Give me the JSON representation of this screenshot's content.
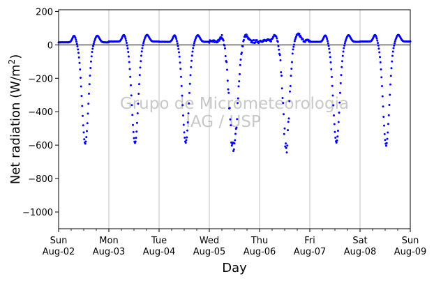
{
  "chart_data": {
    "type": "scatter",
    "xlabel": "Day",
    "ylabel": "Net radiation (W/m",
    "ylabel_sup": "2",
    "ylabel_close": ")",
    "ylim": [
      -1100,
      210
    ],
    "yticks": [
      200,
      0,
      -200,
      -400,
      -600,
      -800,
      -1000
    ],
    "ytick_labels": [
      "200",
      "0",
      "−200",
      "−400",
      "−600",
      "−800",
      "−1000"
    ],
    "xlim_days": [
      0,
      7
    ],
    "xticks": [
      {
        "day": 0,
        "weekday": "Sun",
        "date": "Aug-02"
      },
      {
        "day": 1,
        "weekday": "Mon",
        "date": "Aug-03"
      },
      {
        "day": 2,
        "weekday": "Tue",
        "date": "Aug-04"
      },
      {
        "day": 3,
        "weekday": "Wed",
        "date": "Aug-05"
      },
      {
        "day": 4,
        "weekday": "Thu",
        "date": "Aug-06"
      },
      {
        "day": 5,
        "weekday": "Fri",
        "date": "Aug-07"
      },
      {
        "day": 6,
        "weekday": "Sat",
        "date": "Aug-08"
      },
      {
        "day": 7,
        "weekday": "Sun",
        "date": "Aug-09"
      }
    ],
    "grid": "vertical",
    "zero_line": true,
    "watermark": [
      "Grupo de Micrometeorologia",
      "IAG / USP"
    ],
    "series": [
      {
        "color": "#0000ff",
        "sample_step_hours": 0.25,
        "days": [
          {
            "day": 0,
            "night": 15,
            "midday_min": -590,
            "peak_day_frac": 0.53,
            "width": 0.09,
            "noise": 6
          },
          {
            "day": 1,
            "night": 20,
            "midday_min": -590,
            "peak_day_frac": 0.52,
            "width": 0.09,
            "noise": 6
          },
          {
            "day": 2,
            "night": 18,
            "midday_min": -585,
            "peak_day_frac": 0.53,
            "width": 0.09,
            "noise": 8
          },
          {
            "day": 3,
            "night": 20,
            "midday_min": -640,
            "peak_day_frac": 0.48,
            "width": 0.11,
            "noise": 90
          },
          {
            "day": 4,
            "night": 25,
            "midday_min": -610,
            "peak_day_frac": 0.53,
            "width": 0.09,
            "noise": 80
          },
          {
            "day": 5,
            "night": 18,
            "midday_min": -585,
            "peak_day_frac": 0.53,
            "width": 0.09,
            "noise": 6
          },
          {
            "day": 6,
            "night": 20,
            "midday_min": -600,
            "peak_day_frac": 0.52,
            "width": 0.09,
            "noise": 6
          }
        ]
      }
    ]
  }
}
